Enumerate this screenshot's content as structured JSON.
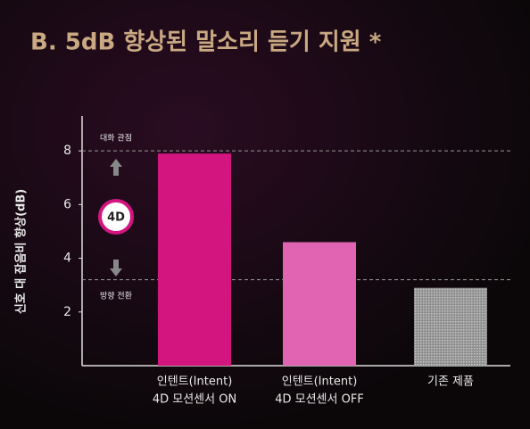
{
  "chart_data": {
    "type": "bar",
    "title": "B. 5dB 향상된 말소리 듣기 지원 *",
    "y_label": "신호 대 잡음비 향상(dB)",
    "categories": [
      [
        "인텐트(Intent)",
        "4D 모션센서 ON"
      ],
      [
        "인텐트(Intent)",
        "4D 모션센서 OFF"
      ],
      [
        "기존 제품"
      ]
    ],
    "values": [
      7.9,
      4.6,
      2.9
    ],
    "colors": [
      "#d2157f",
      "#e064b2",
      "#a8a8a8"
    ],
    "ylim": [
      0,
      9.3
    ],
    "yticks": [
      2,
      4,
      6,
      8
    ],
    "reference_lines": [
      8,
      3.2
    ],
    "annotations": [
      "대화 관점",
      "4D",
      "방향 전환"
    ]
  }
}
